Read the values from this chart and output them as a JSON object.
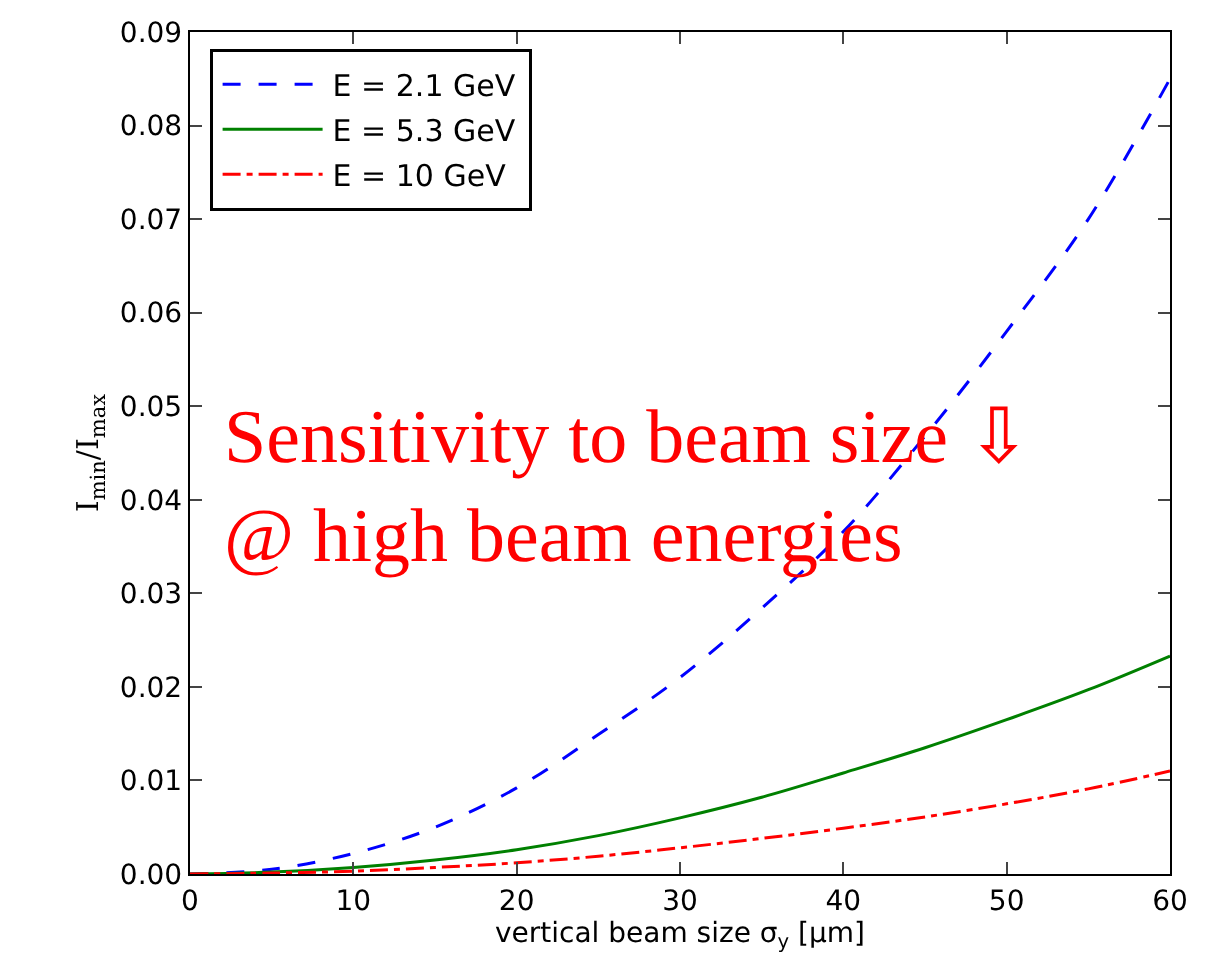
{
  "chart_data": {
    "type": "line",
    "xlabel": "vertical beam size σ$_{y}$ [μm]",
    "ylabel": "I$_{min}$/I$_{max}$",
    "x": [
      0,
      5,
      10,
      15,
      20,
      25,
      30,
      35,
      40,
      45,
      50,
      55,
      60
    ],
    "series": [
      {
        "name": "E = 2.1 GeV",
        "color": "#0000ff",
        "line_style": "dashed",
        "values": [
          0,
          0.0005,
          0.0022,
          0.005,
          0.0092,
          0.0149,
          0.021,
          0.0284,
          0.0366,
          0.0468,
          0.058,
          0.07,
          0.085
        ]
      },
      {
        "name": "E = 5.3 GeV",
        "color": "#008000",
        "line_style": "solid",
        "values": [
          0,
          0.0002,
          0.0007,
          0.0015,
          0.0026,
          0.0041,
          0.006,
          0.0082,
          0.0108,
          0.0135,
          0.0165,
          0.0197,
          0.0233
        ]
      },
      {
        "name": "E = 10 GeV",
        "color": "#ff0000",
        "line_style": "dashdot",
        "values": [
          0,
          0.0001,
          0.0003,
          0.0007,
          0.0012,
          0.0019,
          0.0028,
          0.0038,
          0.0049,
          0.0061,
          0.0075,
          0.0091,
          0.011
        ]
      }
    ],
    "xlim": [
      0,
      60
    ],
    "xticks": [
      0,
      10,
      20,
      30,
      40,
      50,
      60
    ],
    "ylim": [
      0,
      0.09
    ],
    "yticks": [
      {
        "value": 0,
        "label": "0.00"
      },
      {
        "value": 0.01,
        "label": "0.01"
      },
      {
        "value": 0.02,
        "label": "0.02"
      },
      {
        "value": 0.03,
        "label": "0.03"
      },
      {
        "value": 0.04,
        "label": "0.04"
      },
      {
        "value": 0.05,
        "label": "0.05"
      },
      {
        "value": 0.06,
        "label": "0.06"
      },
      {
        "value": 0.07,
        "label": "0.07"
      },
      {
        "value": 0.08,
        "label": "0.08"
      },
      {
        "value": 0.09,
        "label": "0.09"
      }
    ],
    "annotations": [
      "Sensitivity to beam size ⇩\n@ high beam energies"
    ],
    "legend": "top left",
    "marker": "none"
  }
}
